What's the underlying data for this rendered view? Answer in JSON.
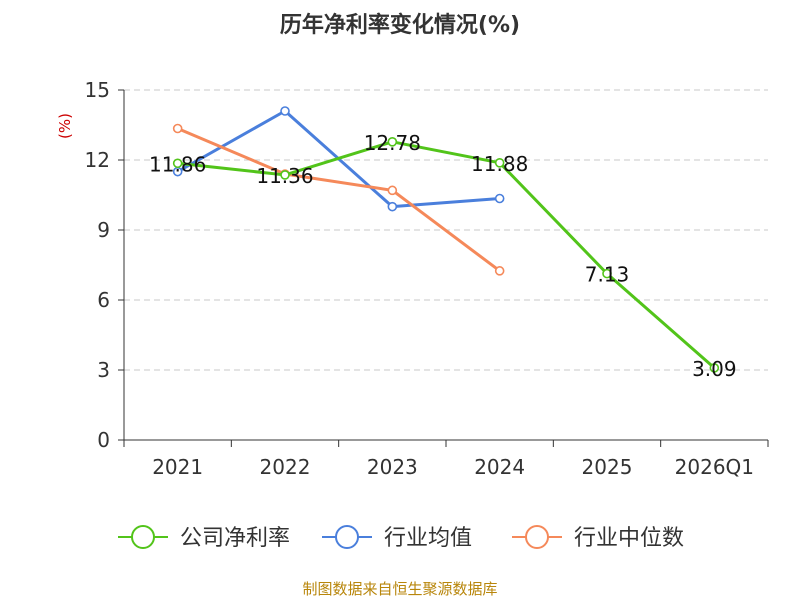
{
  "chart_data": {
    "type": "line",
    "title": "历年净利率变化情况(%)",
    "ylabel": "(%)",
    "categories": [
      "2021",
      "2022",
      "2023",
      "2024",
      "2025",
      "2026Q1"
    ],
    "ylim": [
      0,
      15
    ],
    "yticks": [
      0,
      3,
      6,
      9,
      12,
      15
    ],
    "grid": true,
    "legend_position": "bottom",
    "series": [
      {
        "name": "公司净利率",
        "color": "#52c41a",
        "values": [
          11.86,
          11.36,
          12.78,
          11.88,
          7.13,
          3.09
        ],
        "show_labels": true
      },
      {
        "name": "行业均值",
        "color": "#4a7fdc",
        "values": [
          11.5,
          14.1,
          10.0,
          10.35,
          null,
          null
        ],
        "show_labels": false
      },
      {
        "name": "行业中位数",
        "color": "#f5895a",
        "values": [
          13.35,
          11.4,
          10.7,
          7.25,
          null,
          null
        ],
        "show_labels": false
      }
    ],
    "source": "制图数据来自恒生聚源数据库"
  }
}
